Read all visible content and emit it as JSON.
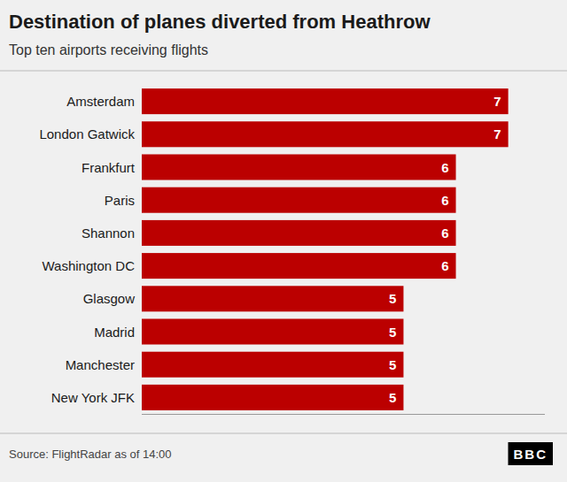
{
  "chart_data": {
    "type": "bar",
    "orientation": "horizontal",
    "title": "Destination of planes diverted from Heathrow",
    "subtitle": "Top ten airports receiving flights",
    "categories": [
      "Amsterdam",
      "London Gatwick",
      "Frankfurt",
      "Paris",
      "Shannon",
      "Washington DC",
      "Glasgow",
      "Madrid",
      "Manchester",
      "New York JFK"
    ],
    "values": [
      7,
      7,
      6,
      6,
      6,
      6,
      5,
      5,
      5,
      5
    ],
    "color": "#bb0000",
    "xlim": [
      0,
      7.7
    ],
    "data_labels": true,
    "tick_labels": "y",
    "grid": false,
    "annotations": [
      "Source: FlightRadar as of 14:00",
      "BBC"
    ]
  }
}
